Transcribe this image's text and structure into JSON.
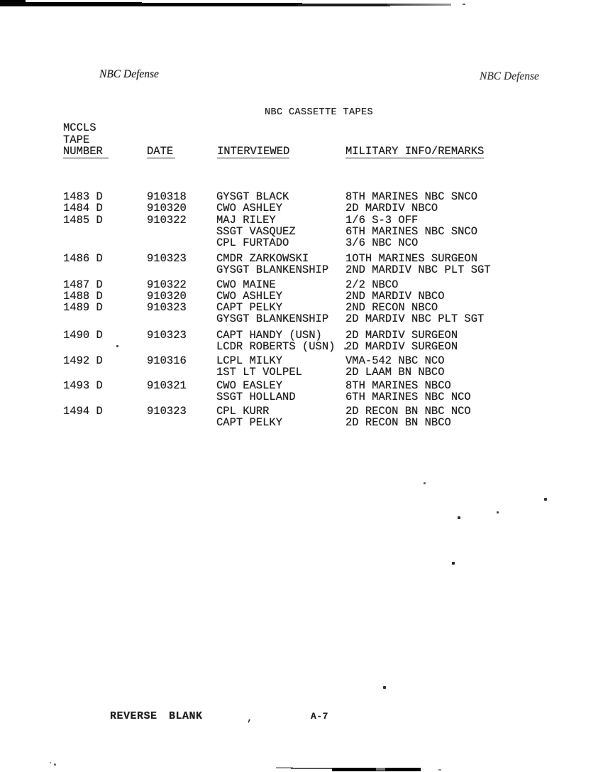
{
  "page": {
    "header_left": "NBC Defense",
    "header_right": "NBC Defense",
    "title": "NBC CASSETTE TAPES",
    "footer_left": "REVERSE BLANK",
    "footer_comma": ",",
    "footer_page": "A-7"
  },
  "table": {
    "number_header_lines": {
      "line1": "MCCLS",
      "line2": "TAPE",
      "line3": "NUMBER"
    },
    "headers": {
      "date": "DATE",
      "interviewed": "INTERVIEWED",
      "remarks": "MILITARY INFO/REMARKS"
    },
    "groups": [
      {
        "number": "1483 D",
        "date": "910318",
        "entries": [
          [
            "GYSGT BLACK",
            "8TH MARINES NBC SNCO"
          ]
        ]
      },
      {
        "number": "1484 D",
        "date": "910320",
        "entries": [
          [
            "CWO ASHLEY",
            "2D MARDIV NBCO"
          ]
        ]
      },
      {
        "number": "1485 D",
        "date": "910322",
        "entries": [
          [
            "MAJ RILEY",
            "1/6 S-3 OFF"
          ],
          [
            "SSGT VASQUEZ",
            "6TH MARINES NBC SNCO"
          ],
          [
            "CPL FURTADO",
            "3/6 NBC NCO"
          ]
        ]
      },
      {
        "number": "1486 D",
        "date": "910323",
        "entries": [
          [
            "CMDR ZARKOWSKI",
            "1OTH MARINES SURGEON"
          ],
          [
            "GYSGT BLANKENSHIP",
            "2ND MARDIV NBC PLT SGT"
          ]
        ]
      },
      {
        "number": "1487 D",
        "date": "910322",
        "entries": [
          [
            "CWO MAINE",
            "2/2 NBCO"
          ]
        ]
      },
      {
        "number": "1488 D",
        "date": "910320",
        "entries": [
          [
            "CWO ASHLEY",
            "2ND MARDIV NBCO"
          ]
        ]
      },
      {
        "number": "1489 D",
        "date": "910323",
        "entries": [
          [
            "CAPT PELKY",
            "2ND RECON NBCO"
          ],
          [
            "GYSGT BLANKENSHIP",
            "2D MARDIV NBC PLT SGT"
          ]
        ]
      },
      {
        "number": "1490 D",
        "date": "910323",
        "entries": [
          [
            "CAPT HANDY (USN)",
            "2D MARDIV SURGEON"
          ],
          [
            "LCDR ROBERTS (USN) .",
            "2D MARDIV SURGEON"
          ]
        ]
      },
      {
        "number": "1492 D",
        "date": "910316",
        "entries": [
          [
            "LCPL MILKY",
            "VMA-542 NBC NCO"
          ],
          [
            "1ST LT VOLPEL",
            "2D LAAM BN NBCO"
          ]
        ]
      },
      {
        "number": "1493 D",
        "date": "910321",
        "entries": [
          [
            "CWO EASLEY",
            "8TH MARINES NBCO"
          ],
          [
            "SSGT HOLLAND",
            "6TH MARINES NBC NCO"
          ]
        ]
      },
      {
        "number": "1494 D",
        "date": "910323",
        "entries": [
          [
            "CPL KURR",
            "2D RECON BN NBC NCO"
          ],
          [
            "CAPT PELKY",
            "2D RECON BN NBCO"
          ]
        ]
      }
    ]
  }
}
